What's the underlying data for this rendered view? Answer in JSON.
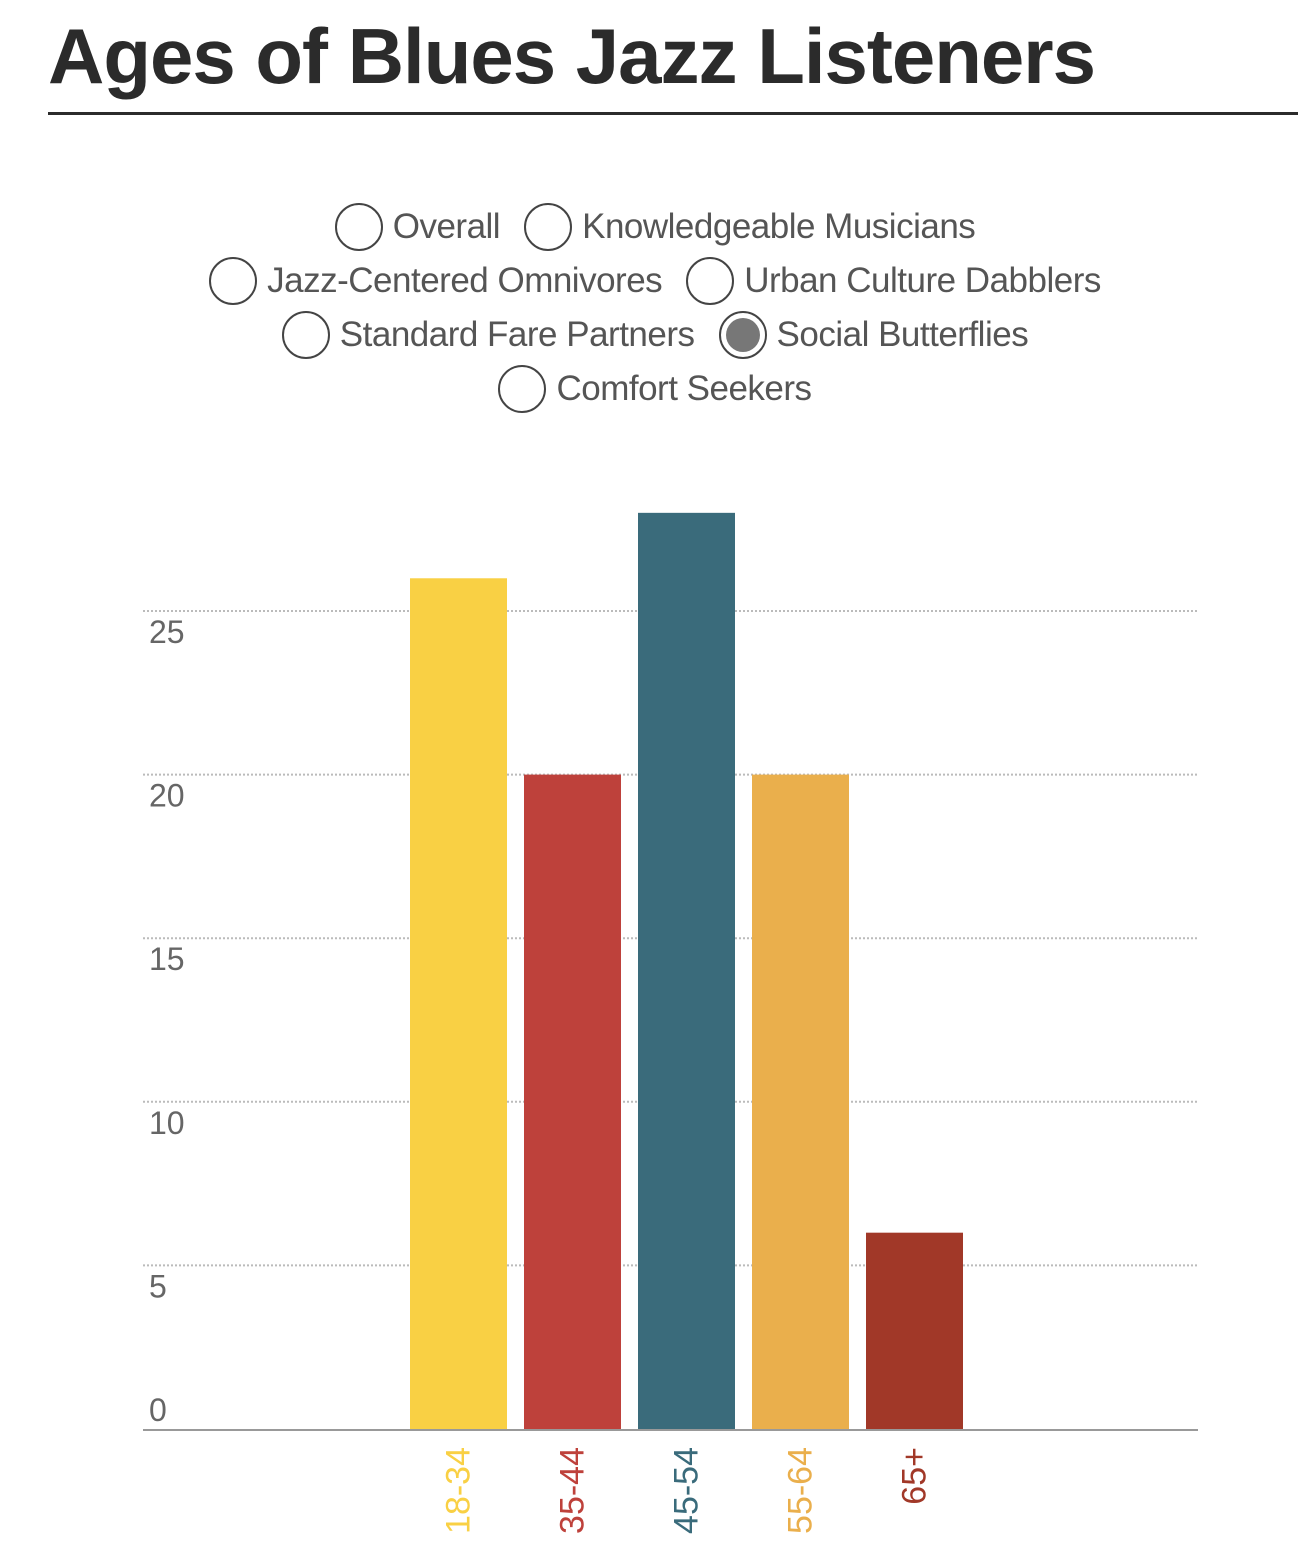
{
  "page": {
    "title": "Ages of Blues Jazz Listeners"
  },
  "filters": {
    "selected": "Social Butterflies",
    "rows": [
      [
        {
          "label": "Overall",
          "checked": false
        },
        {
          "label": "Knowledgeable Musicians",
          "checked": false
        }
      ],
      [
        {
          "label": "Jazz-Centered Omnivores",
          "checked": false
        },
        {
          "label": "Urban Culture Dabblers",
          "checked": false
        }
      ],
      [
        {
          "label": "Standard Fare Partners",
          "checked": false
        },
        {
          "label": "Social Butterflies",
          "checked": true
        }
      ],
      [
        {
          "label": "Comfort Seekers",
          "checked": false
        }
      ]
    ]
  },
  "chart_data": {
    "type": "bar",
    "title": "Ages of Blues Jazz Listeners",
    "xlabel": "",
    "ylabel": "",
    "categories": [
      "18-34",
      "35-44",
      "45-54",
      "55-64",
      "65+"
    ],
    "values": [
      26,
      20,
      28,
      20,
      6
    ],
    "colors": [
      "#F9D044",
      "#BE413B",
      "#3A6B7B",
      "#EAAF4C",
      "#A13828"
    ],
    "ylim": [
      0,
      28
    ],
    "yticks": [
      0,
      5,
      10,
      15,
      20,
      25
    ],
    "grid": true,
    "legend": "none"
  }
}
